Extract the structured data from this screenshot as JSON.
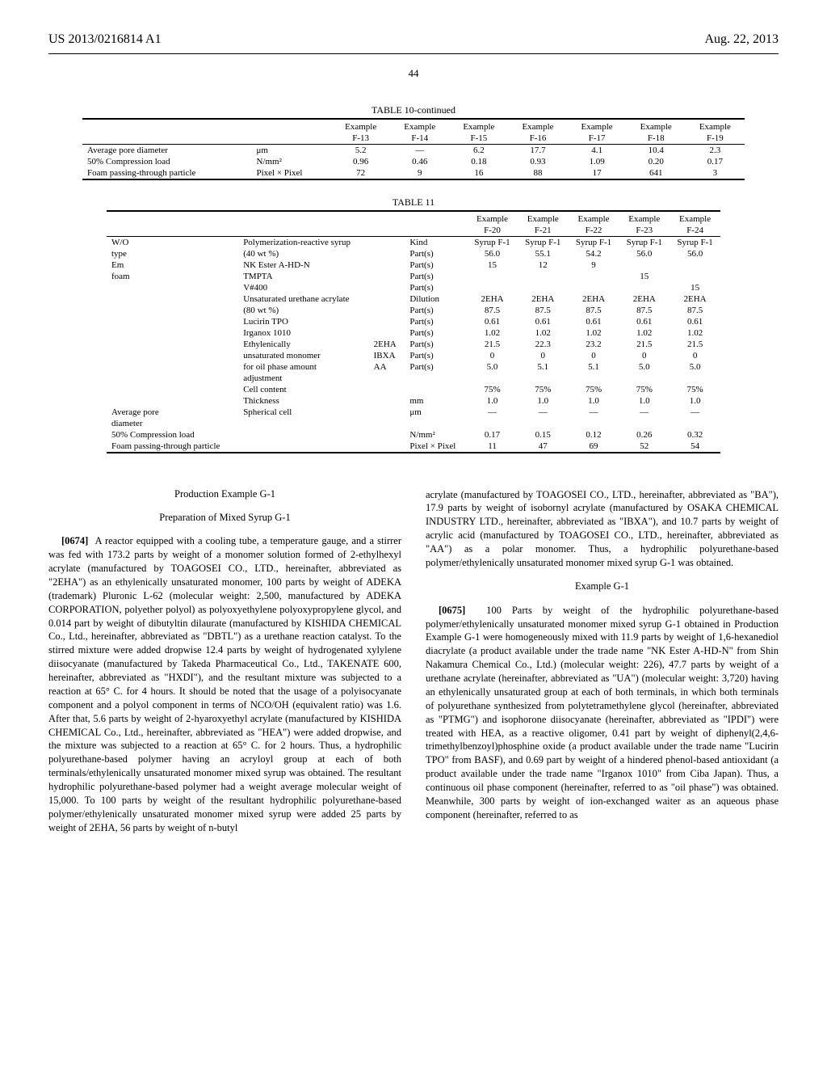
{
  "header": {
    "left": "US 2013/0216814 A1",
    "right": "Aug. 22, 2013",
    "page_number": "44"
  },
  "table10": {
    "title": "TABLE 10-continued",
    "col_headers_top": [
      "Example",
      "Example",
      "Example",
      "Example",
      "Example",
      "Example",
      "Example"
    ],
    "col_headers_bot": [
      "F-13",
      "F-14",
      "F-15",
      "F-16",
      "F-17",
      "F-18",
      "F-19"
    ],
    "rows": [
      {
        "label": "Average pore diameter",
        "unit": "μm",
        "vals": [
          "5.2",
          "—",
          "6.2",
          "17.7",
          "4.1",
          "10.4",
          "2.3"
        ]
      },
      {
        "label": "50% Compression load",
        "unit": "N/mm²",
        "vals": [
          "0.96",
          "0.46",
          "0.18",
          "0.93",
          "1.09",
          "0.20",
          "0.17"
        ]
      },
      {
        "label": "Foam passing-through particle",
        "unit": "Pixel × Pixel",
        "vals": [
          "72",
          "9",
          "16",
          "88",
          "17",
          "641",
          "3"
        ]
      }
    ]
  },
  "table11": {
    "title": "TABLE 11",
    "col_headers_top": [
      "Example",
      "Example",
      "Example",
      "Example",
      "Example"
    ],
    "col_headers_bot": [
      "F-20",
      "F-21",
      "F-22",
      "F-23",
      "F-24"
    ],
    "rows": [
      {
        "c1": "W/O",
        "c2": "Polymerization-reactive syrup",
        "c3": "",
        "c4": "Kind",
        "vals": [
          "Syrup F-1",
          "Syrup F-1",
          "Syrup F-1",
          "Syrup F-1",
          "Syrup F-1"
        ]
      },
      {
        "c1": "type",
        "c2": "(40 wt %)",
        "c3": "",
        "c4": "Part(s)",
        "vals": [
          "56.0",
          "55.1",
          "54.2",
          "56.0",
          "56.0"
        ]
      },
      {
        "c1": "Em",
        "c2": "NK Ester A-HD-N",
        "c3": "",
        "c4": "Part(s)",
        "vals": [
          "15",
          "12",
          "9",
          "",
          ""
        ]
      },
      {
        "c1": "foam",
        "c2": "TMPTA",
        "c3": "",
        "c4": "Part(s)",
        "vals": [
          "",
          "",
          "",
          "15",
          ""
        ]
      },
      {
        "c1": "",
        "c2": "V#400",
        "c3": "",
        "c4": "Part(s)",
        "vals": [
          "",
          "",
          "",
          "",
          "15"
        ]
      },
      {
        "c1": "",
        "c2": "Unsaturated urethane acrylate",
        "c3": "",
        "c4": "Dilution",
        "vals": [
          "2EHA",
          "2EHA",
          "2EHA",
          "2EHA",
          "2EHA"
        ]
      },
      {
        "c1": "",
        "c2": "(80 wt %)",
        "c3": "",
        "c4": "Part(s)",
        "vals": [
          "87.5",
          "87.5",
          "87.5",
          "87.5",
          "87.5"
        ]
      },
      {
        "c1": "",
        "c2": "Lucirin TPO",
        "c3": "",
        "c4": "Part(s)",
        "vals": [
          "0.61",
          "0.61",
          "0.61",
          "0.61",
          "0.61"
        ]
      },
      {
        "c1": "",
        "c2": "Irganox 1010",
        "c3": "",
        "c4": "Part(s)",
        "vals": [
          "1.02",
          "1.02",
          "1.02",
          "1.02",
          "1.02"
        ]
      },
      {
        "c1": "",
        "c2": "Ethylenically",
        "c3": "2EHA",
        "c4": "Part(s)",
        "vals": [
          "21.5",
          "22.3",
          "23.2",
          "21.5",
          "21.5"
        ]
      },
      {
        "c1": "",
        "c2": "unsaturated monomer",
        "c3": "IBXA",
        "c4": "Part(s)",
        "vals": [
          "0",
          "0",
          "0",
          "0",
          "0"
        ]
      },
      {
        "c1": "",
        "c2": "for oil phase amount",
        "c3": "AA",
        "c4": "Part(s)",
        "vals": [
          "5.0",
          "5.1",
          "5.1",
          "5.0",
          "5.0"
        ]
      },
      {
        "c1": "",
        "c2": "adjustment",
        "c3": "",
        "c4": "",
        "vals": [
          "",
          "",
          "",
          "",
          ""
        ]
      },
      {
        "c1": "",
        "c2": "Cell content",
        "c3": "",
        "c4": "",
        "vals": [
          "75%",
          "75%",
          "75%",
          "75%",
          "75%"
        ]
      },
      {
        "c1": "",
        "c2": "Thickness",
        "c3": "",
        "c4": "mm",
        "vals": [
          "1.0",
          "1.0",
          "1.0",
          "1.0",
          "1.0"
        ]
      },
      {
        "c1": "Average pore",
        "c2": "Spherical cell",
        "c3": "",
        "c4": "μm",
        "vals": [
          "—",
          "—",
          "—",
          "—",
          "—"
        ]
      },
      {
        "c1": "diameter",
        "c2": "",
        "c3": "",
        "c4": "",
        "vals": [
          "",
          "",
          "",
          "",
          ""
        ]
      },
      {
        "c1": "50% Compression load",
        "c2": "",
        "c3": "",
        "c4": "N/mm²",
        "vals": [
          "0.17",
          "0.15",
          "0.12",
          "0.26",
          "0.32"
        ]
      },
      {
        "c1": "Foam passing-through particle",
        "c2": "",
        "c3": "",
        "c4": "Pixel × Pixel",
        "vals": [
          "11",
          "47",
          "69",
          "52",
          "54"
        ]
      }
    ]
  },
  "body": {
    "left_title1": "Production Example G-1",
    "left_title2": "Preparation of Mixed Syrup G-1",
    "left_para_num": "[0674]",
    "left_para": "A reactor equipped with a cooling tube, a temperature gauge, and a stirrer was fed with 173.2 parts by weight of a monomer solution formed of 2-ethylhexyl acrylate (manufactured by TOAGOSEI CO., LTD., hereinafter, abbreviated as \"2EHA\") as an ethylenically unsaturated monomer, 100 parts by weight of ADEKA (trademark) Pluronic L-62 (molecular weight: 2,500, manufactured by ADEKA CORPORATION, polyether polyol) as polyoxyethylene polyoxypropylene glycol, and 0.014 part by weight of dibutyltin dilaurate (manufactured by KISHIDA CHEMICAL Co., Ltd., hereinafter, abbreviated as \"DBTL\") as a urethane reaction catalyst. To the stirred mixture were added dropwise 12.4 parts by weight of hydrogenated xylylene diisocyanate (manufactured by Takeda Pharmaceutical Co., Ltd., TAKENATE 600, hereinafter, abbreviated as \"HXDI\"), and the resultant mixture was subjected to a reaction at 65° C. for 4 hours. It should be noted that the usage of a polyisocyanate component and a polyol component in terms of NCO/OH (equivalent ratio) was 1.6. After that, 5.6 parts by weight of 2-hyaroxyethyl acrylate (manufactured by KISHIDA CHEMICAL Co., Ltd., hereinafter, abbreviated as \"HEA\") were added dropwise, and the mixture was subjected to a reaction at 65° C. for 2 hours. Thus, a hydrophilic polyurethane-based polymer having an acryloyl group at each of both terminals/ethylenically unsaturated monomer mixed syrup was obtained. The resultant hydrophilic polyurethane-based polymer had a weight average molecular weight of 15,000. To 100 parts by weight of the resultant hydrophilic polyurethane-based polymer/ethylenically unsaturated monomer mixed syrup were added 25 parts by weight of 2EHA, 56 parts by weight of n-butyl",
    "right_para1": "acrylate (manufactured by TOAGOSEI CO., LTD., hereinafter, abbreviated as \"BA\"), 17.9 parts by weight of isobornyl acrylate (manufactured by OSAKA CHEMICAL INDUSTRY LTD., hereinafter, abbreviated as \"IBXA\"), and 10.7 parts by weight of acrylic acid (manufactured by TOAGOSEI CO., LTD., hereinafter, abbreviated as \"AA\") as a polar monomer. Thus, a hydrophilic polyurethane-based polymer/ethylenically unsaturated monomer mixed syrup G-1 was obtained.",
    "right_title": "Example G-1",
    "right_para_num": "[0675]",
    "right_para2": "100 Parts by weight of the hydrophilic polyurethane-based polymer/ethylenically unsaturated monomer mixed syrup G-1 obtained in Production Example G-1 were homogeneously mixed with 11.9 parts by weight of 1,6-hexanediol diacrylate (a product available under the trade name \"NK Ester A-HD-N\" from Shin Nakamura Chemical Co., Ltd.) (molecular weight: 226), 47.7 parts by weight of a urethane acrylate (hereinafter, abbreviated as \"UA\") (molecular weight: 3,720) having an ethylenically unsaturated group at each of both terminals, in which both terminals of polyurethane synthesized from polytetramethylene glycol (hereinafter, abbreviated as \"PTMG\") and isophorone diisocyanate (hereinafter, abbreviated as \"IPDI\") were treated with HEA, as a reactive oligomer, 0.41 part by weight of diphenyl(2,4,6-trimethylbenzoyl)phosphine oxide (a product available under the trade name \"Lucirin TPO\" from BASF), and 0.69 part by weight of a hindered phenol-based antioxidant (a product available under the trade name \"Irganox 1010\" from Ciba Japan). Thus, a continuous oil phase component (hereinafter, referred to as \"oil phase\") was obtained. Meanwhile, 300 parts by weight of ion-exchanged waiter as an aqueous phase component (hereinafter, referred to as"
  }
}
